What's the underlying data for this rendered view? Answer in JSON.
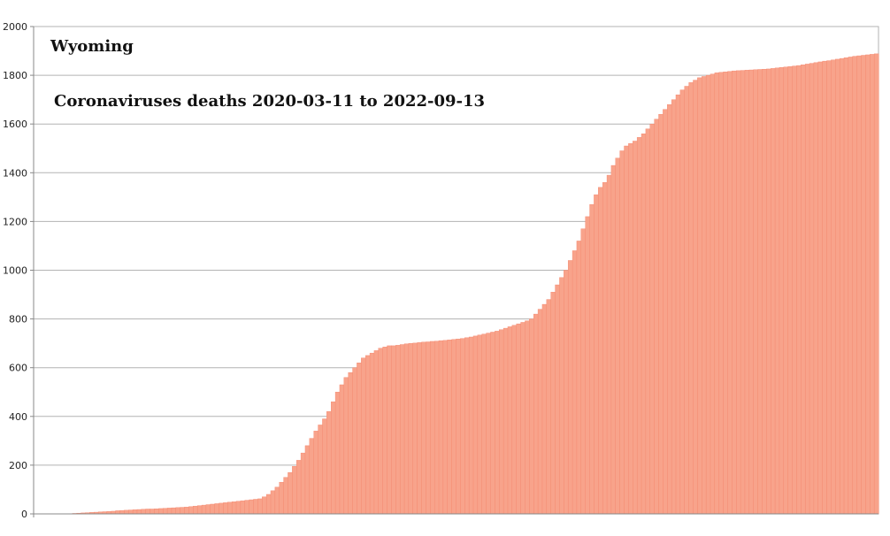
{
  "chart_data": {
    "type": "bar",
    "title": "Wyoming",
    "subtitle": "Coronaviruses deaths 2020-03-11 to 2022-09-13",
    "xlabel": "",
    "ylabel": "",
    "ylim": [
      0,
      2000
    ],
    "yticks": [
      0,
      200,
      400,
      600,
      800,
      1000,
      1200,
      1400,
      1600,
      1800,
      2000
    ],
    "grid": true,
    "bar_color": "#f8a38b",
    "bar_edge_color": "#f4846a",
    "period": {
      "start": "2020-03-11",
      "end": "2022-09-13"
    },
    "series": [
      {
        "values": [
          0,
          0,
          0,
          0,
          0,
          0,
          0,
          0,
          1,
          2,
          3,
          4,
          5,
          6,
          7,
          8,
          9,
          10,
          11,
          13,
          14,
          15,
          16,
          17,
          18,
          19,
          20,
          20,
          21,
          22,
          23,
          24,
          25,
          26,
          27,
          28,
          30,
          32,
          34,
          36,
          38,
          40,
          42,
          44,
          46,
          48,
          50,
          52,
          54,
          56,
          58,
          60,
          62,
          70,
          80,
          95,
          110,
          130,
          150,
          170,
          195,
          220,
          250,
          280,
          310,
          340,
          365,
          390,
          420,
          460,
          500,
          530,
          560,
          580,
          600,
          620,
          640,
          650,
          660,
          670,
          680,
          685,
          690,
          690,
          692,
          695,
          698,
          700,
          701,
          703,
          705,
          706,
          708,
          709,
          711,
          712,
          714,
          716,
          718,
          720,
          723,
          726,
          730,
          734,
          738,
          742,
          746,
          750,
          756,
          762,
          768,
          774,
          780,
          786,
          792,
          800,
          820,
          840,
          860,
          880,
          910,
          940,
          970,
          1000,
          1040,
          1080,
          1120,
          1170,
          1220,
          1270,
          1310,
          1340,
          1360,
          1390,
          1430,
          1460,
          1490,
          1510,
          1520,
          1530,
          1545,
          1560,
          1580,
          1600,
          1620,
          1640,
          1660,
          1680,
          1700,
          1720,
          1740,
          1755,
          1770,
          1780,
          1790,
          1795,
          1800,
          1805,
          1810,
          1812,
          1814,
          1816,
          1818,
          1819,
          1820,
          1821,
          1822,
          1823,
          1824,
          1825,
          1826,
          1828,
          1830,
          1832,
          1834,
          1836,
          1838,
          1840,
          1843,
          1846,
          1849,
          1852,
          1855,
          1858,
          1860,
          1863,
          1866,
          1869,
          1872,
          1875,
          1878,
          1880,
          1882,
          1884,
          1886,
          1888
        ]
      }
    ]
  }
}
